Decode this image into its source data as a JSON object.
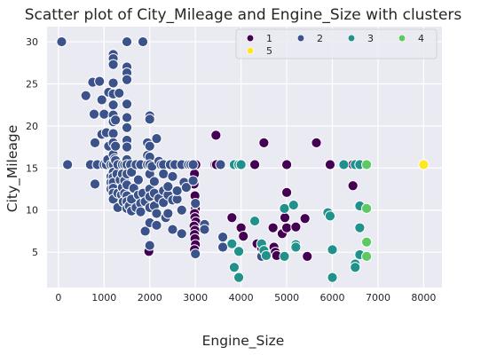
{
  "chart_data": {
    "type": "scatter",
    "title": "Scatter plot of City_Mileage and Engine_Size with clusters",
    "xlabel": "Engine_Size",
    "ylabel": "City_Mileage",
    "xlim": [
      -250,
      8400
    ],
    "ylim": [
      0.8,
      31.8
    ],
    "xticks": [
      0,
      1000,
      2000,
      3000,
      4000,
      5000,
      6000,
      7000,
      8000
    ],
    "yticks": [
      5,
      10,
      15,
      20,
      25,
      30
    ],
    "grid": true,
    "legend_placement": "top-right",
    "series": [
      {
        "name": "1",
        "color": "#440154",
        "points": [
          [
            1980,
            5.1
          ],
          [
            2960,
            15.4
          ],
          [
            3010,
            15.4
          ],
          [
            2980,
            14.3
          ],
          [
            2970,
            13.1
          ],
          [
            2990,
            11.7
          ],
          [
            3000,
            10.2
          ],
          [
            2980,
            9.6
          ],
          [
            2990,
            9.1
          ],
          [
            3010,
            8.6
          ],
          [
            2970,
            8.1
          ],
          [
            2990,
            7.6
          ],
          [
            2980,
            7.1
          ],
          [
            2990,
            6.6
          ],
          [
            3000,
            5.9
          ],
          [
            2980,
            5.3
          ],
          [
            3450,
            18.9
          ],
          [
            3430,
            15.4
          ],
          [
            3460,
            15.4
          ],
          [
            3800,
            9.1
          ],
          [
            4000,
            7.9
          ],
          [
            4050,
            6.9
          ],
          [
            4300,
            15.4
          ],
          [
            4350,
            6.0
          ],
          [
            4450,
            5.5
          ],
          [
            4500,
            18.0
          ],
          [
            4700,
            7.9
          ],
          [
            4720,
            5.6
          ],
          [
            4750,
            5.0
          ],
          [
            4780,
            4.6
          ],
          [
            4900,
            7.2
          ],
          [
            4960,
            9.1
          ],
          [
            5000,
            15.4
          ],
          [
            5000,
            12.1
          ],
          [
            5000,
            7.9
          ],
          [
            5200,
            8.0
          ],
          [
            5400,
            9.0
          ],
          [
            5450,
            4.5
          ],
          [
            5650,
            18.0
          ],
          [
            5950,
            15.4
          ],
          [
            6450,
            12.9
          ],
          [
            6450,
            15.4
          ]
        ]
      },
      {
        "name": "2",
        "color": "#3b528b",
        "points": [
          [
            70,
            30.0
          ],
          [
            1500,
            30.0
          ],
          [
            1850,
            30.0
          ],
          [
            200,
            15.4
          ],
          [
            600,
            23.6
          ],
          [
            700,
            15.4
          ],
          [
            750,
            25.2
          ],
          [
            780,
            21.4
          ],
          [
            800,
            18.0
          ],
          [
            800,
            13.1
          ],
          [
            850,
            15.4
          ],
          [
            900,
            25.3
          ],
          [
            950,
            19.0
          ],
          [
            950,
            23.1
          ],
          [
            1000,
            15.4
          ],
          [
            1000,
            21.4
          ],
          [
            1050,
            15.4
          ],
          [
            1050,
            19.2
          ],
          [
            1080,
            16.0
          ],
          [
            1100,
            24.0
          ],
          [
            1100,
            17.6
          ],
          [
            1150,
            15.4
          ],
          [
            1150,
            14.0
          ],
          [
            1150,
            13.3
          ],
          [
            1150,
            12.5
          ],
          [
            1200,
            28.5
          ],
          [
            1200,
            28.0
          ],
          [
            1200,
            27.3
          ],
          [
            1200,
            25.1
          ],
          [
            1200,
            23.8
          ],
          [
            1200,
            22.5
          ],
          [
            1200,
            21.3
          ],
          [
            1200,
            20.5
          ],
          [
            1200,
            19.1
          ],
          [
            1200,
            18.0
          ],
          [
            1200,
            16.6
          ],
          [
            1200,
            15.4
          ],
          [
            1200,
            14.5
          ],
          [
            1200,
            13.9
          ],
          [
            1200,
            13.3
          ],
          [
            1200,
            12.6
          ],
          [
            1200,
            12.0
          ],
          [
            1200,
            11.3
          ],
          [
            1230,
            16.1
          ],
          [
            1250,
            20.7
          ],
          [
            1250,
            17.6
          ],
          [
            1250,
            15.9
          ],
          [
            1280,
            14.3
          ],
          [
            1300,
            15.4
          ],
          [
            1300,
            12.0
          ],
          [
            1300,
            10.3
          ],
          [
            1330,
            23.9
          ],
          [
            1350,
            13.6
          ],
          [
            1380,
            11.8
          ],
          [
            1400,
            15.4
          ],
          [
            1400,
            14.3
          ],
          [
            1400,
            12.7
          ],
          [
            1420,
            11.0
          ],
          [
            1450,
            15.4
          ],
          [
            1450,
            13.5
          ],
          [
            1450,
            12.0
          ],
          [
            1500,
            27.0
          ],
          [
            1500,
            26.3
          ],
          [
            1500,
            25.5
          ],
          [
            1500,
            22.6
          ],
          [
            1500,
            21.0
          ],
          [
            1500,
            19.8
          ],
          [
            1500,
            18.3
          ],
          [
            1500,
            17.5
          ],
          [
            1500,
            16.0
          ],
          [
            1500,
            15.4
          ],
          [
            1500,
            14.3
          ],
          [
            1500,
            13.0
          ],
          [
            1500,
            11.7
          ],
          [
            1500,
            11.0
          ],
          [
            1500,
            10.2
          ],
          [
            1550,
            10.5
          ],
          [
            1580,
            15.4
          ],
          [
            1600,
            14.5
          ],
          [
            1600,
            11.3
          ],
          [
            1600,
            9.9
          ],
          [
            1650,
            12.6
          ],
          [
            1700,
            15.4
          ],
          [
            1700,
            10.3
          ],
          [
            1750,
            11.8
          ],
          [
            1750,
            13.6
          ],
          [
            1800,
            15.4
          ],
          [
            1800,
            10.8
          ],
          [
            1800,
            9.8
          ],
          [
            1850,
            12.0
          ],
          [
            1900,
            11.0
          ],
          [
            1900,
            7.5
          ],
          [
            1950,
            18.0
          ],
          [
            1950,
            15.4
          ],
          [
            1950,
            16.5
          ],
          [
            2000,
            21.2
          ],
          [
            2000,
            20.8
          ],
          [
            2000,
            17.6
          ],
          [
            2000,
            16.3
          ],
          [
            2000,
            15.4
          ],
          [
            2000,
            14.3
          ],
          [
            2000,
            12.5
          ],
          [
            2000,
            11.6
          ],
          [
            2000,
            10.3
          ],
          [
            2000,
            8.5
          ],
          [
            2000,
            5.8
          ],
          [
            2050,
            15.2
          ],
          [
            2100,
            13.4
          ],
          [
            2100,
            12.0
          ],
          [
            2100,
            10.5
          ],
          [
            2150,
            18.5
          ],
          [
            2150,
            9.6
          ],
          [
            2150,
            8.2
          ],
          [
            2200,
            15.8
          ],
          [
            2200,
            11.4
          ],
          [
            2250,
            15.4
          ],
          [
            2300,
            15.4
          ],
          [
            2300,
            14.3
          ],
          [
            2300,
            12.3
          ],
          [
            2300,
            10.9
          ],
          [
            2350,
            9.1
          ],
          [
            2400,
            11.8
          ],
          [
            2400,
            9.6
          ],
          [
            2400,
            12.8
          ],
          [
            2450,
            15.4
          ],
          [
            2500,
            14.0
          ],
          [
            2500,
            11.2
          ],
          [
            2500,
            7.7
          ],
          [
            2550,
            15.4
          ],
          [
            2600,
            11.3
          ],
          [
            2600,
            12.3
          ],
          [
            2700,
            15.4
          ],
          [
            2700,
            10.0
          ],
          [
            2700,
            7.2
          ],
          [
            2750,
            13.3
          ],
          [
            2800,
            12.7
          ],
          [
            2850,
            15.4
          ],
          [
            2900,
            15.4
          ],
          [
            2950,
            15.4
          ],
          [
            2950,
            13.5
          ],
          [
            3000,
            10.8
          ],
          [
            3000,
            4.8
          ],
          [
            3200,
            8.3
          ],
          [
            3200,
            7.7
          ],
          [
            3550,
            15.4
          ],
          [
            3600,
            6.8
          ],
          [
            3600,
            5.6
          ],
          [
            4450,
            4.5
          ]
        ]
      },
      {
        "name": "3",
        "color": "#21918c",
        "points": [
          [
            3850,
            15.4
          ],
          [
            3950,
            15.4
          ],
          [
            4000,
            15.4
          ],
          [
            3800,
            6.0
          ],
          [
            3850,
            3.2
          ],
          [
            3950,
            5.1
          ],
          [
            3950,
            2.0
          ],
          [
            4300,
            8.7
          ],
          [
            4450,
            6.0
          ],
          [
            4500,
            5.2
          ],
          [
            4550,
            4.6
          ],
          [
            4950,
            10.2
          ],
          [
            4950,
            4.5
          ],
          [
            5150,
            10.6
          ],
          [
            5200,
            5.9
          ],
          [
            5200,
            5.6
          ],
          [
            5900,
            9.7
          ],
          [
            5950,
            9.3
          ],
          [
            6000,
            5.3
          ],
          [
            6000,
            2.0
          ],
          [
            6250,
            15.4
          ],
          [
            6500,
            15.4
          ],
          [
            6500,
            3.6
          ],
          [
            6500,
            3.2
          ],
          [
            6600,
            15.4
          ],
          [
            6600,
            10.5
          ],
          [
            6600,
            7.9
          ],
          [
            6600,
            4.7
          ]
        ]
      },
      {
        "name": "4",
        "color": "#5ec962",
        "points": [
          [
            6750,
            15.4
          ],
          [
            6750,
            10.2
          ],
          [
            6750,
            6.2
          ],
          [
            6750,
            4.5
          ]
        ]
      },
      {
        "name": "5",
        "color": "#fde725",
        "points": [
          [
            8000,
            15.4
          ]
        ]
      }
    ]
  }
}
